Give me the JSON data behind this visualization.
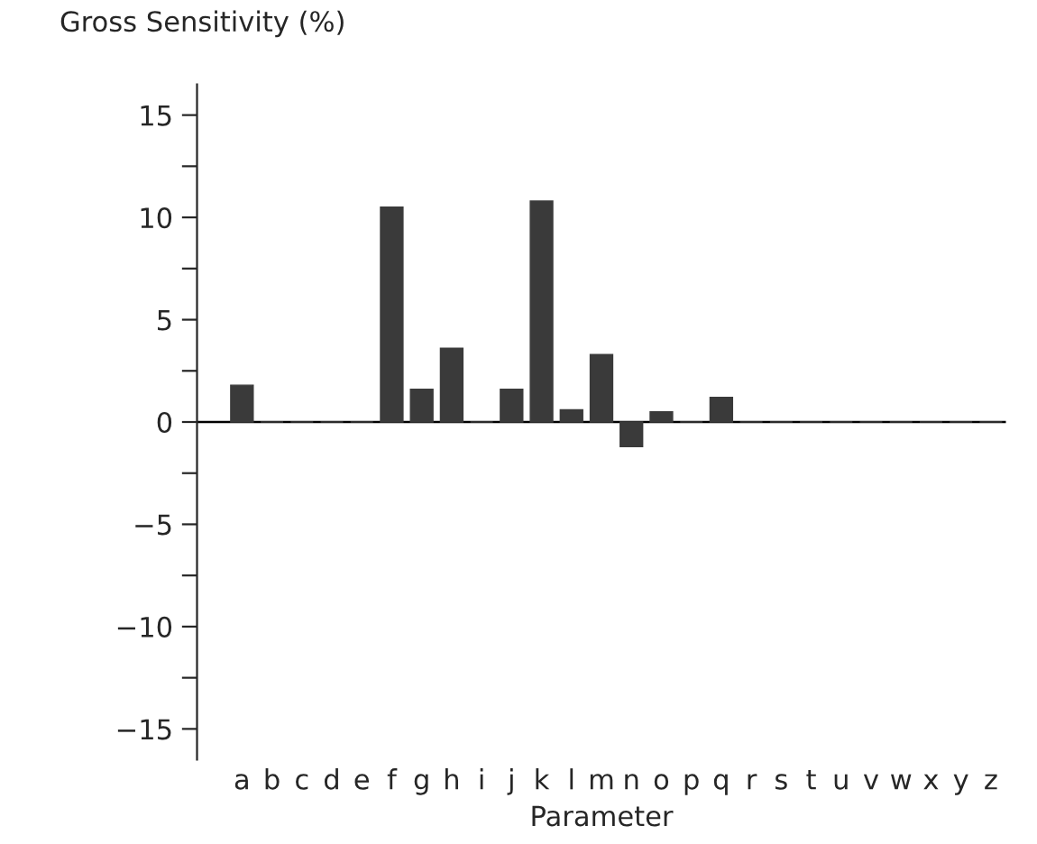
{
  "chart_data": {
    "type": "bar",
    "ylabel": "Gross Sensitivity (%)",
    "xlabel": "Parameter",
    "categories": [
      "a",
      "b",
      "c",
      "d",
      "e",
      "f",
      "g",
      "h",
      "i",
      "j",
      "k",
      "l",
      "m",
      "n",
      "o",
      "p",
      "q",
      "r",
      "s",
      "t",
      "u",
      "v",
      "w",
      "x",
      "y",
      "z"
    ],
    "values": [
      1.8,
      0,
      0,
      0,
      0,
      10.5,
      1.6,
      3.6,
      0,
      1.6,
      10.8,
      0.6,
      3.3,
      -1.2,
      0.5,
      0,
      1.2,
      0,
      0,
      0,
      0,
      0,
      0,
      0,
      0,
      0
    ],
    "color": "#3a3a3a",
    "ylim": [
      -16.5,
      16.5
    ],
    "yticks": [
      -15,
      {
        "value": -12.5,
        "label": null
      },
      -10,
      {
        "value": -7.5,
        "label": null
      },
      -5,
      {
        "value": -2.5,
        "label": null
      },
      0,
      {
        "value": 2.5,
        "label": null
      },
      5,
      {
        "value": 7.5,
        "label": null
      },
      10,
      {
        "value": 12.5,
        "label": null
      },
      15
    ],
    "ref_lines": [
      {
        "axis": "y",
        "value": 0,
        "color": "#000000"
      }
    ],
    "grid": false
  }
}
